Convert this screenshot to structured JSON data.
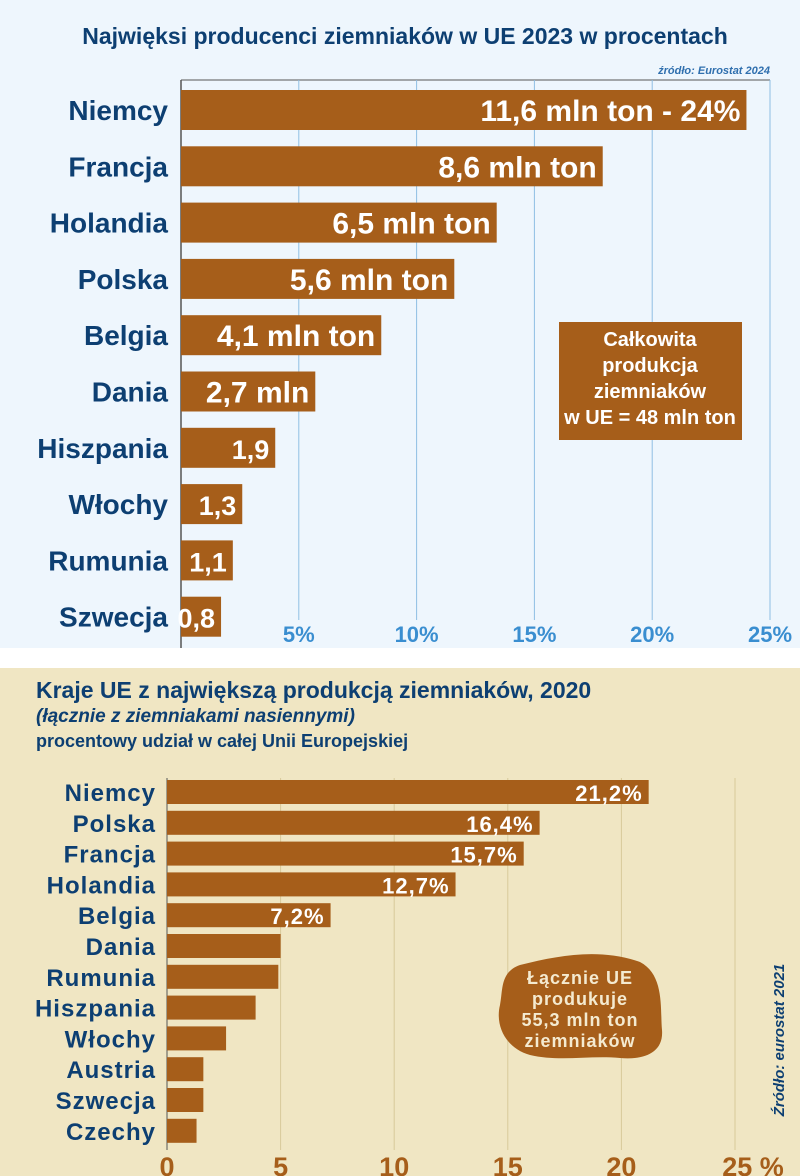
{
  "colors": {
    "top_bg": "#eef6fd",
    "bottom_bg": "#f0e6c3",
    "bar": "#a65e1a",
    "label": "#0d3f72",
    "tick_top": "#3a8ed0",
    "tick_bottom": "#a65e1a",
    "grid_top": "#8fbfe3",
    "grid_bottom": "#d8c99a"
  },
  "chart_data": [
    {
      "type": "bar",
      "orientation": "horizontal",
      "title": "Najwięksi producenci ziemniaków w UE 2023 w procentach",
      "source": "źródło: Eurostat 2024",
      "categories": [
        "Niemcy",
        "Francja",
        "Holandia",
        "Polska",
        "Belgia",
        "Dania",
        "Hiszpania",
        "Włochy",
        "Rumunia",
        "Szwecja"
      ],
      "values": [
        24,
        17.9,
        13.4,
        11.6,
        8.5,
        5.7,
        4.0,
        2.6,
        2.2,
        1.7
      ],
      "data_labels": [
        "11,6 mln ton  -  24%",
        "8,6 mln ton",
        "6,5 mln ton",
        "5,6 mln ton",
        "4,1 mln ton",
        "2,7 mln",
        "1,9",
        "1,3",
        "1,1",
        "0,8"
      ],
      "xlim": [
        0,
        25
      ],
      "xticks": [
        5,
        10,
        15,
        20,
        25
      ],
      "xtick_labels": [
        "5%",
        "10%",
        "15%",
        "20%",
        "25%"
      ],
      "grid": true,
      "annotation": [
        "Całkowita",
        "produkcja",
        "ziemniaków",
        "w UE = 48 mln ton"
      ]
    },
    {
      "type": "bar",
      "orientation": "horizontal",
      "title": "Kraje UE z największą produkcją ziemniaków, 2020",
      "subtitle": "(łącznie z ziemniakami nasiennymi)",
      "subtitle2": "procentowy udział w całej Unii Europejskiej",
      "source": "Źródło: eurostat 2021",
      "categories": [
        "Niemcy",
        "Polska",
        "Francja",
        "Holandia",
        "Belgia",
        "Dania",
        "Rumunia",
        "Hiszpania",
        "Włochy",
        "Austria",
        "Szwecja",
        "Czechy"
      ],
      "values": [
        21.2,
        16.4,
        15.7,
        12.7,
        7.2,
        5.0,
        4.9,
        3.9,
        2.6,
        1.6,
        1.6,
        1.3
      ],
      "data_labels": [
        "21,2%",
        "16,4%",
        "15,7%",
        "12,7%",
        "7,2%",
        "",
        "",
        "",
        "",
        "",
        "",
        ""
      ],
      "xlim": [
        0,
        25
      ],
      "xticks": [
        0,
        5,
        10,
        15,
        20,
        25
      ],
      "xtick_labels": [
        "0",
        "5",
        "10",
        "15",
        "20",
        "25 %"
      ],
      "grid": true,
      "annotation": [
        "Łącznie UE",
        "produkuje",
        "55,3 mln ton",
        "ziemniaków"
      ]
    }
  ]
}
